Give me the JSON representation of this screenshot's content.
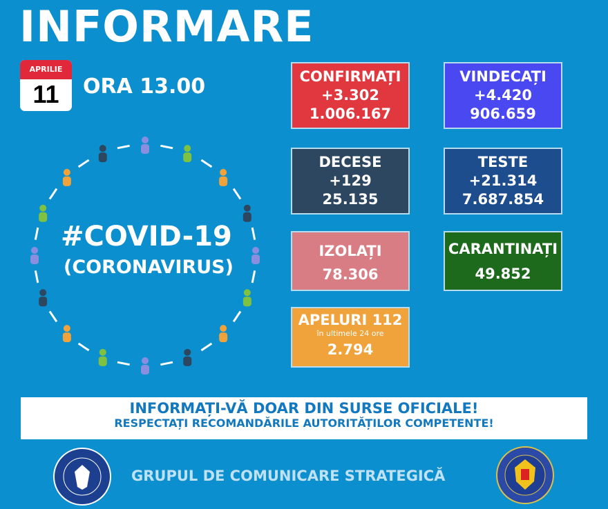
{
  "title": "INFORMARE",
  "date": {
    "month": "APRILIE",
    "day": "11"
  },
  "time": "ORA 13.00",
  "hashtag": "#COVID-19",
  "subtitle": "(CORONAVIRUS)",
  "stats": [
    {
      "label": "CONFIRMAȚI",
      "delta": "+3.302",
      "total": "1.006.167",
      "color": "#e1383f"
    },
    {
      "label": "VINDECAȚI",
      "delta": "+4.420",
      "total": "906.659",
      "color": "#4a48f0"
    },
    {
      "label": "DECESE",
      "delta": "+129",
      "total": "25.135",
      "color": "#2e4760"
    },
    {
      "label": "TESTE",
      "delta": "+21.314",
      "total": "7.687.854",
      "color": "#1e4d8e"
    },
    {
      "label": "IZOLAȚI",
      "total": "78.306",
      "color": "#d97d84"
    },
    {
      "label": "CARANTINAȚI",
      "total": "49.852",
      "color": "#1d6a1d"
    },
    {
      "label": "APELURI 112",
      "note": "în ultimele 24 ore",
      "total": "2.794",
      "color": "#f0a23b"
    }
  ],
  "banner": {
    "line1": "INFORMAȚI-VĂ DOAR DIN SURSE OFICIALE!",
    "line2": "RESPECTAȚI RECOMANDĂRILE AUTORITĂȚILOR COMPETENTE!"
  },
  "footer": "GRUPUL DE COMUNICARE STRATEGICĂ",
  "logos": {
    "left": "GUVERNUL ROMÂNIEI",
    "right": "DEPARTAMENTUL PENTRU SITUAȚII DE URGENȚĂ M.A.I."
  }
}
